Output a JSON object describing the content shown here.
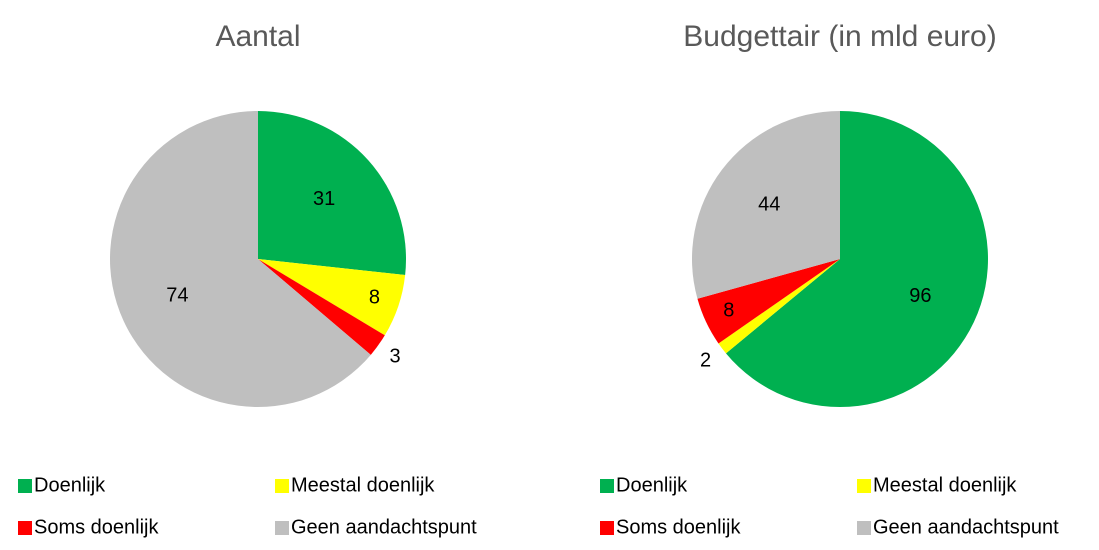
{
  "chart_data": [
    {
      "type": "pie",
      "title": "Aantal",
      "categories": [
        "Doenlijk",
        "Meestal doenlijk",
        "Soms doenlijk",
        "Geen aandachtspunt"
      ],
      "values": [
        31,
        8,
        3,
        74
      ],
      "colors": [
        "#00b050",
        "#ffff00",
        "#ff0000",
        "#bfbfbf"
      ]
    },
    {
      "type": "pie",
      "title": "Budgettair (in mld euro)",
      "categories": [
        "Doenlijk",
        "Meestal doenlijk",
        "Soms doenlijk",
        "Geen aandachtspunt"
      ],
      "values": [
        96,
        2,
        8,
        44
      ],
      "colors": [
        "#00b050",
        "#ffff00",
        "#ff0000",
        "#bfbfbf"
      ]
    }
  ]
}
